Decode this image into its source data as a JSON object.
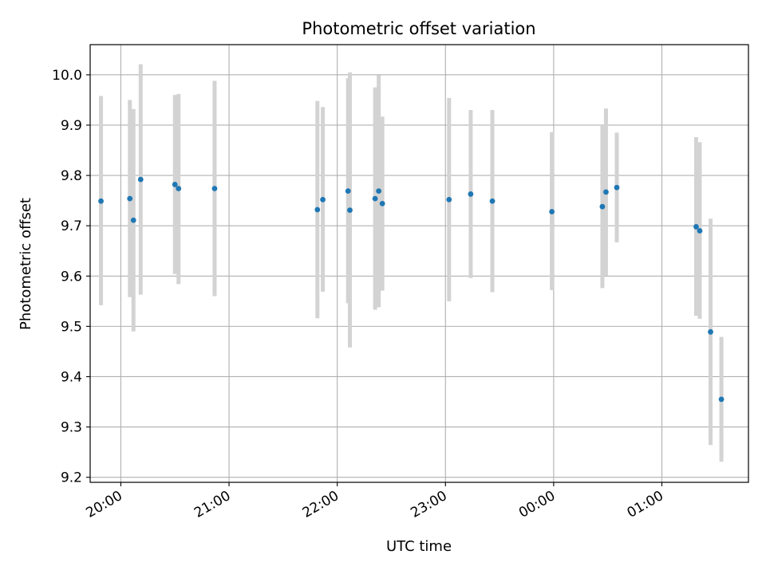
{
  "chart_data": {
    "type": "scatter",
    "title": "Photometric offset variation",
    "xlabel": "UTC time",
    "ylabel": "Photometric offset",
    "xlim": [
      "19:43",
      "01:48"
    ],
    "ylim": [
      9.19,
      10.06
    ],
    "x_tick_labels": [
      "20:00",
      "21:00",
      "22:00",
      "23:00",
      "00:00",
      "01:00"
    ],
    "y_ticks": [
      9.2,
      9.3,
      9.4,
      9.5,
      9.6,
      9.7,
      9.8,
      9.9,
      10.0
    ],
    "y_tick_labels": [
      "9.2",
      "9.3",
      "9.4",
      "9.5",
      "9.6",
      "9.7",
      "9.8",
      "9.9",
      "10.0"
    ],
    "grid": true,
    "errorbar_color": "#d3d3d3",
    "point_color": "#1f77b4",
    "points": [
      {
        "x": "19:49",
        "y": 9.749,
        "lo": 9.542,
        "hi": 9.958
      },
      {
        "x": "20:05",
        "y": 9.754,
        "lo": 9.558,
        "hi": 9.95
      },
      {
        "x": "20:07",
        "y": 9.711,
        "lo": 9.49,
        "hi": 9.932
      },
      {
        "x": "20:11",
        "y": 9.792,
        "lo": 9.563,
        "hi": 10.021
      },
      {
        "x": "20:30",
        "y": 9.782,
        "lo": 9.604,
        "hi": 9.96
      },
      {
        "x": "20:32",
        "y": 9.774,
        "lo": 9.584,
        "hi": 9.962
      },
      {
        "x": "20:52",
        "y": 9.774,
        "lo": 9.56,
        "hi": 9.988
      },
      {
        "x": "21:49",
        "y": 9.732,
        "lo": 9.516,
        "hi": 9.948
      },
      {
        "x": "21:52",
        "y": 9.752,
        "lo": 9.569,
        "hi": 9.936
      },
      {
        "x": "22:06",
        "y": 9.769,
        "lo": 9.546,
        "hi": 9.993
      },
      {
        "x": "22:07",
        "y": 9.731,
        "lo": 9.458,
        "hi": 10.005
      },
      {
        "x": "22:21",
        "y": 9.754,
        "lo": 9.533,
        "hi": 9.975
      },
      {
        "x": "22:23",
        "y": 9.769,
        "lo": 9.538,
        "hi": 9.999
      },
      {
        "x": "22:25",
        "y": 9.744,
        "lo": 9.571,
        "hi": 9.917
      },
      {
        "x": "23:02",
        "y": 9.752,
        "lo": 9.55,
        "hi": 9.954
      },
      {
        "x": "23:14",
        "y": 9.763,
        "lo": 9.596,
        "hi": 9.93
      },
      {
        "x": "23:26",
        "y": 9.749,
        "lo": 9.568,
        "hi": 9.93
      },
      {
        "x": "23:59",
        "y": 9.728,
        "lo": 9.572,
        "hi": 9.886
      },
      {
        "x": "00:27",
        "y": 9.738,
        "lo": 9.576,
        "hi": 9.9
      },
      {
        "x": "00:29",
        "y": 9.767,
        "lo": 9.601,
        "hi": 9.933
      },
      {
        "x": "00:35",
        "y": 9.776,
        "lo": 9.667,
        "hi": 9.885
      },
      {
        "x": "01:19",
        "y": 9.698,
        "lo": 9.521,
        "hi": 9.876
      },
      {
        "x": "01:21",
        "y": 9.69,
        "lo": 9.515,
        "hi": 9.866
      },
      {
        "x": "01:27",
        "y": 9.489,
        "lo": 9.264,
        "hi": 9.714
      },
      {
        "x": "01:33",
        "y": 9.355,
        "lo": 9.231,
        "hi": 9.479
      }
    ]
  }
}
